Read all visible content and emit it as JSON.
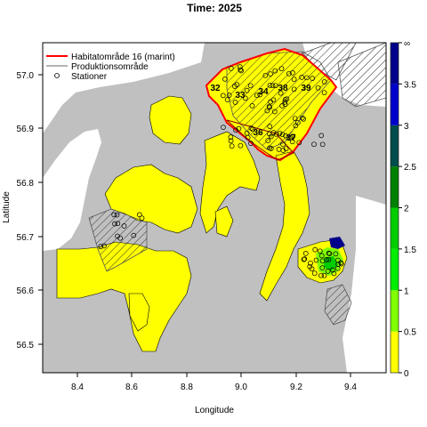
{
  "title": "Time: 2025",
  "axes": {
    "xlabel": "Longitude",
    "ylabel": "Latitude",
    "xticks": [
      "8.4",
      "8.6",
      "8.8",
      "9.0",
      "9.2",
      "9.4"
    ],
    "yticks": [
      "57.0",
      "56.9",
      "56.8",
      "56.7",
      "56.6",
      "56.5"
    ]
  },
  "legend": {
    "items": [
      {
        "label": "Habitatområde 16 (marint)",
        "symbol": "line",
        "color": "#ff0000"
      },
      {
        "label": "Produktionsområde",
        "symbol": "line",
        "color": "#666666"
      },
      {
        "label": "Stationer",
        "symbol": "circle",
        "color": "#000000"
      }
    ]
  },
  "colorbar": {
    "labels": [
      "0",
      "0.5",
      "1",
      "1.5",
      "2",
      "2.5",
      "3",
      "3.5",
      "∞"
    ],
    "colors": [
      "#ffff00",
      "#80ff00",
      "#00ee00",
      "#00cc00",
      "#008000",
      "#004d4d",
      "#0000cc",
      "#00008b"
    ]
  },
  "zones": [
    "32",
    "33",
    "34",
    "38",
    "39",
    "36",
    "37"
  ],
  "colors": {
    "land": "#c0c0c0",
    "water": "#ffff00",
    "habitat_border": "#ff0000"
  }
}
